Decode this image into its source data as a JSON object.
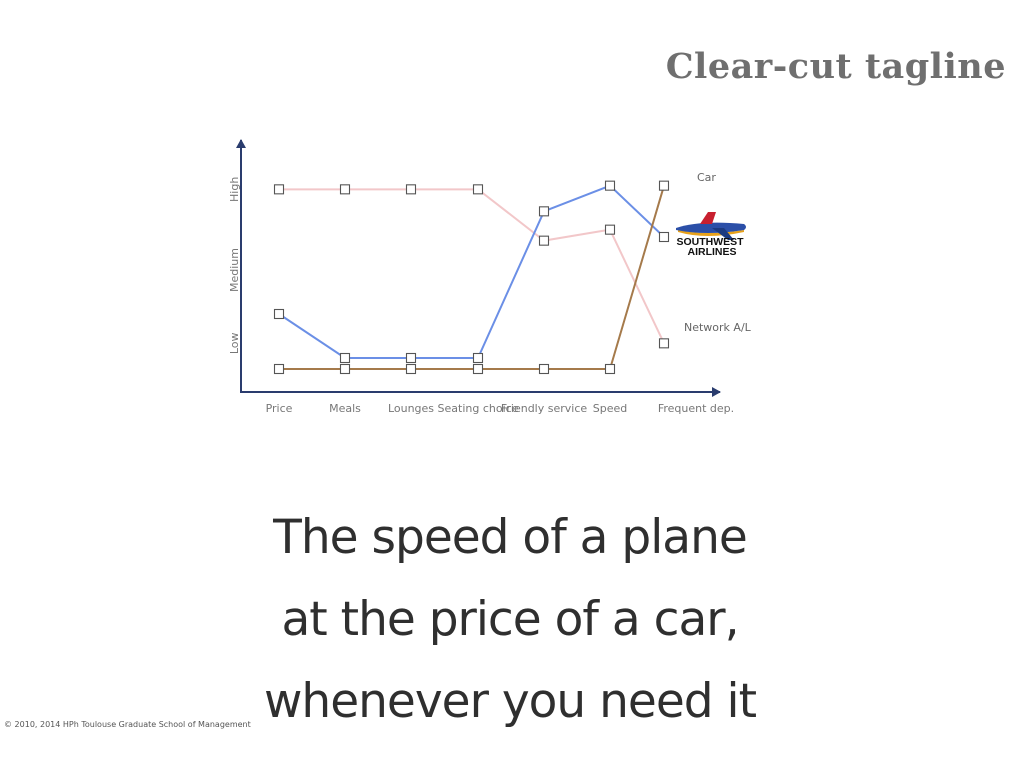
{
  "slide": {
    "title": "Clear-cut tagline",
    "tagline": [
      "The speed of a plane",
      "at the price of a car,",
      "whenever you need it"
    ],
    "copyright": "© 2010, 2014 HPh Toulouse Graduate School of Management"
  },
  "logo": {
    "lines": [
      "SOUTHWEST",
      "AIRLINES"
    ],
    "icon": "airplane-icon",
    "colors": {
      "fuselage": "#2b4fa8",
      "tail": "#c8202f",
      "belly": "#e8a21b"
    }
  },
  "chart_data": {
    "type": "line",
    "categories": [
      "Price",
      "Meals",
      "Lounges",
      "Seating choice",
      "Friendly service",
      "Speed",
      "Frequent dep."
    ],
    "y_levels": [
      "Low",
      "Medium",
      "High"
    ],
    "ylim": [
      0,
      3
    ],
    "grid": false,
    "series": [
      {
        "name": "Network A/L",
        "color": "#f2c7c9",
        "values": [
          2.6,
          2.6,
          2.6,
          2.6,
          1.9,
          2.05,
          0.5
        ]
      },
      {
        "name": "",
        "color": "#6b8fe6",
        "values": [
          0.9,
          0.3,
          0.3,
          0.3,
          2.3,
          2.65,
          1.95
        ]
      },
      {
        "name": "Car",
        "color": "#a57a4b",
        "values": [
          0.15,
          0.15,
          0.15,
          0.15,
          0.15,
          0.15,
          2.65
        ]
      }
    ]
  }
}
